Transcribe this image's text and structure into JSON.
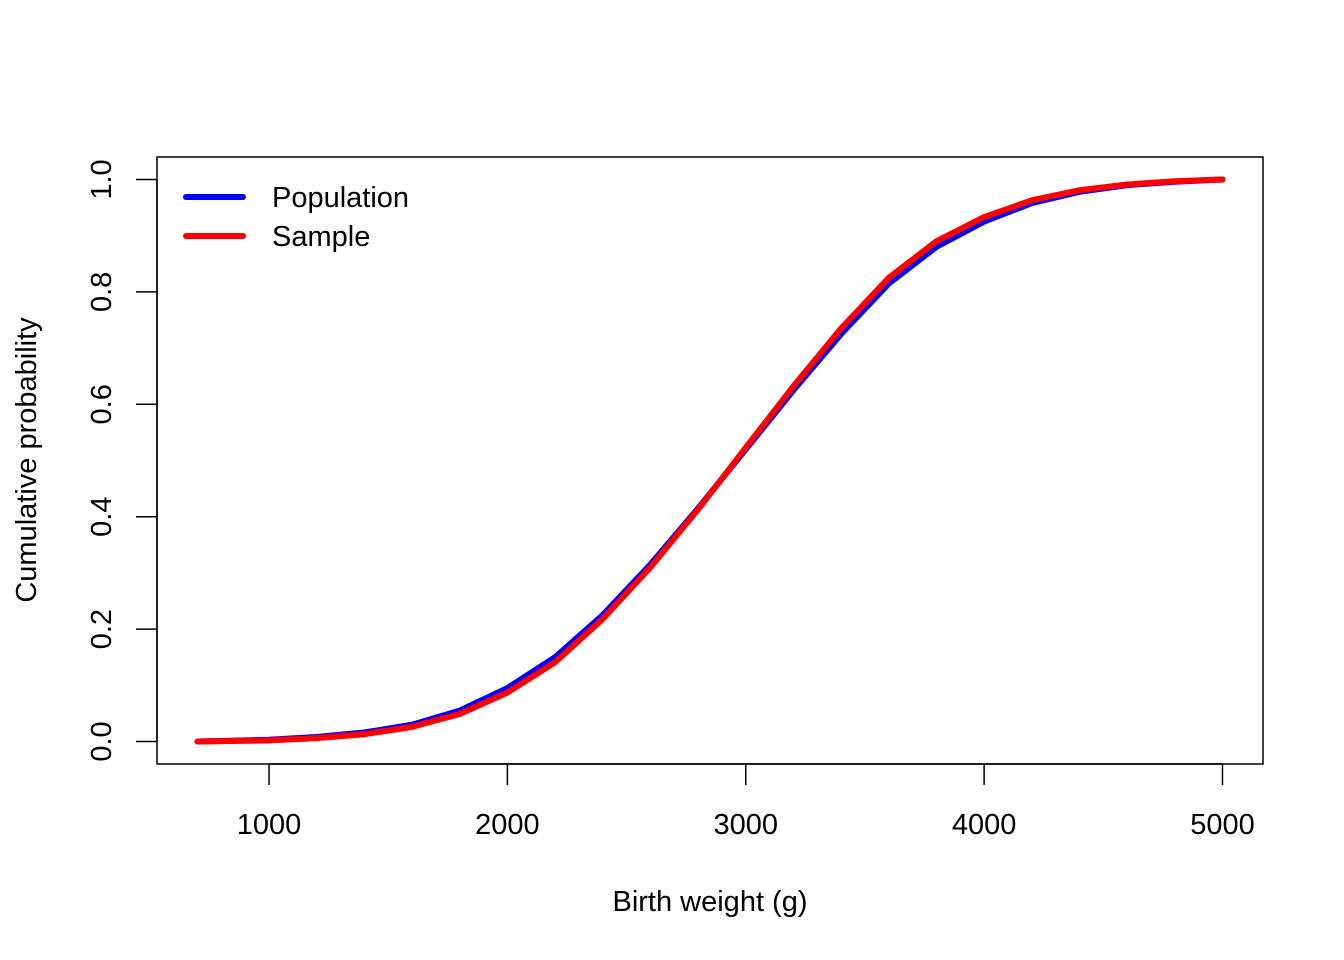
{
  "chart_data": {
    "type": "line",
    "title": "",
    "xlabel": "Birth weight (g)",
    "ylabel": "Cumulative probability",
    "xlim": [
      530,
      5170
    ],
    "ylim": [
      -0.04,
      1.04
    ],
    "x_ticks": [
      1000,
      2000,
      3000,
      4000,
      5000
    ],
    "x_tick_labels": [
      "1000",
      "2000",
      "3000",
      "4000",
      "5000"
    ],
    "y_ticks": [
      0.0,
      0.2,
      0.4,
      0.6,
      0.8,
      1.0
    ],
    "y_tick_labels": [
      "0.0",
      "0.2",
      "0.4",
      "0.6",
      "0.8",
      "1.0"
    ],
    "grid": false,
    "legend_position": "top-left",
    "series": [
      {
        "name": "Population",
        "color": "#0000FF",
        "x": [
          700,
          1000,
          1200,
          1400,
          1600,
          1800,
          2000,
          2200,
          2400,
          2600,
          2800,
          3000,
          3200,
          3400,
          3600,
          3800,
          4000,
          4200,
          4400,
          4600,
          4800,
          5000
        ],
        "y": [
          0.0,
          0.003,
          0.008,
          0.016,
          0.03,
          0.055,
          0.095,
          0.15,
          0.225,
          0.315,
          0.415,
          0.52,
          0.625,
          0.725,
          0.815,
          0.88,
          0.925,
          0.958,
          0.978,
          0.99,
          0.996,
          1.0
        ]
      },
      {
        "name": "Sample",
        "color": "#FF0000",
        "x": [
          700,
          1000,
          1200,
          1400,
          1600,
          1800,
          2000,
          2200,
          2400,
          2600,
          2800,
          3000,
          3200,
          3400,
          3600,
          3800,
          4000,
          4200,
          4400,
          4600,
          4800,
          5000
        ],
        "y": [
          0.0,
          0.002,
          0.006,
          0.013,
          0.026,
          0.049,
          0.087,
          0.141,
          0.218,
          0.31,
          0.413,
          0.523,
          0.632,
          0.735,
          0.825,
          0.89,
          0.933,
          0.963,
          0.981,
          0.991,
          0.997,
          1.0
        ]
      }
    ]
  }
}
